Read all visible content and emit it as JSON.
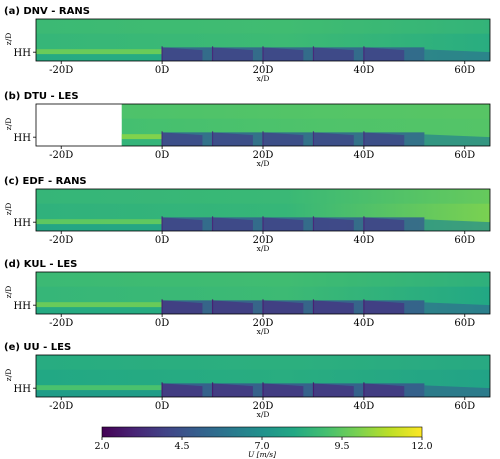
{
  "chart_data": {
    "type": "heatmap",
    "colormap": "viridis",
    "x_unit": "D",
    "xlabel": "x/D",
    "ylabel": "z/D",
    "xlim": [
      -25,
      65
    ],
    "x_ticks": [
      -20,
      0,
      20,
      40,
      60
    ],
    "x_tick_labels": [
      "-20D",
      "0D",
      "20D",
      "40D",
      "60D"
    ],
    "y_tick_labels": [
      "HH"
    ],
    "turbine_rows_x": [
      0,
      10,
      20,
      30,
      40
    ],
    "colorbar": {
      "label": "U [m/s]",
      "min": 2.0,
      "max": 12.0,
      "ticks": [
        2.0,
        4.5,
        7.0,
        9.5,
        12.0
      ],
      "tick_labels": [
        "2.0",
        "4.5",
        "7.0",
        "9.5",
        "12.0"
      ]
    },
    "panels": [
      {
        "title": "(a) DNV - RANS",
        "domain_start_x": -25,
        "freestream_u": 8.6,
        "wake_u": 4.0,
        "end_u": 7.6
      },
      {
        "title": "(b) DTU - LES",
        "domain_start_x": -8,
        "freestream_u": 9.0,
        "wake_u": 4.2,
        "end_u": 8.7
      },
      {
        "title": "(c) EDF - RANS",
        "domain_start_x": -25,
        "freestream_u": 8.4,
        "wake_u": 4.0,
        "end_u": 9.4
      },
      {
        "title": "(d) KUL - LES",
        "domain_start_x": -25,
        "freestream_u": 8.6,
        "wake_u": 3.7,
        "end_u": 7.4
      },
      {
        "title": "(e) UU - LES",
        "domain_start_x": -25,
        "freestream_u": 8.0,
        "wake_u": 3.6,
        "end_u": 7.2
      }
    ]
  }
}
